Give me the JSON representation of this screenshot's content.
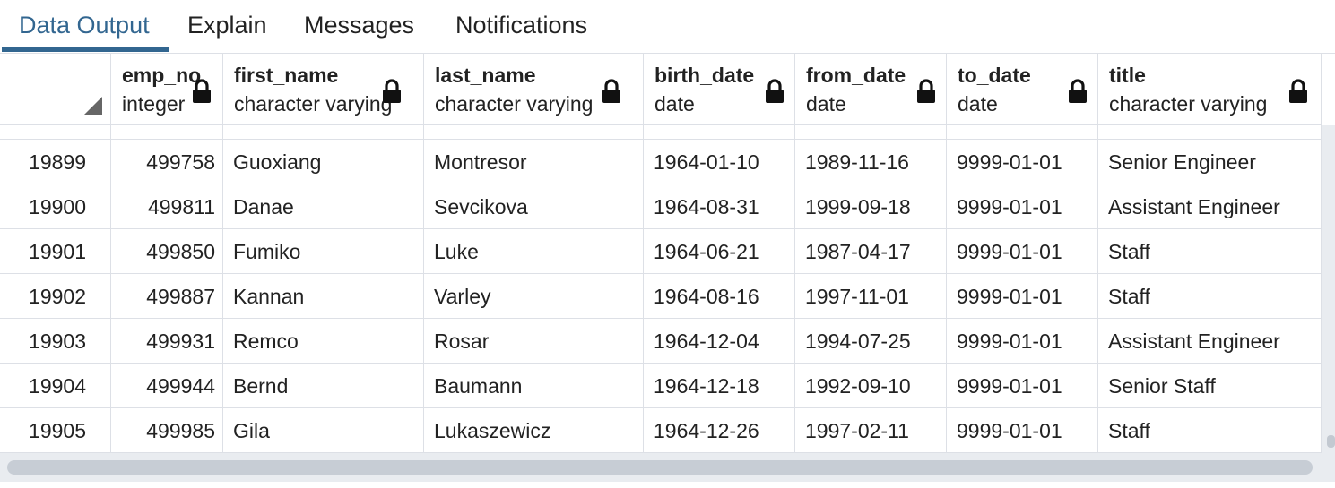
{
  "tabs": [
    {
      "label": "Data Output",
      "active": true
    },
    {
      "label": "Explain",
      "active": false
    },
    {
      "label": "Messages",
      "active": false
    },
    {
      "label": "Notifications",
      "active": false
    }
  ],
  "columns": [
    {
      "name": "emp_no",
      "type": "integer",
      "align": "right"
    },
    {
      "name": "first_name",
      "type": "character varying",
      "align": "left"
    },
    {
      "name": "last_name",
      "type": "character varying",
      "align": "left"
    },
    {
      "name": "birth_date",
      "type": "date",
      "align": "left"
    },
    {
      "name": "from_date",
      "type": "date",
      "align": "left"
    },
    {
      "name": "to_date",
      "type": "date",
      "align": "left"
    },
    {
      "name": "title",
      "type": "character varying",
      "align": "left"
    }
  ],
  "rows": [
    {
      "num": "19899",
      "cells": [
        "499758",
        "Guoxiang",
        "Montresor",
        "1964-01-10",
        "1989-11-16",
        "9999-01-01",
        "Senior Engineer"
      ]
    },
    {
      "num": "19900",
      "cells": [
        "499811",
        "Danae",
        "Sevcikova",
        "1964-08-31",
        "1999-09-18",
        "9999-01-01",
        "Assistant Engineer"
      ]
    },
    {
      "num": "19901",
      "cells": [
        "499850",
        "Fumiko",
        "Luke",
        "1964-06-21",
        "1987-04-17",
        "9999-01-01",
        "Staff"
      ]
    },
    {
      "num": "19902",
      "cells": [
        "499887",
        "Kannan",
        "Varley",
        "1964-08-16",
        "1997-11-01",
        "9999-01-01",
        "Staff"
      ]
    },
    {
      "num": "19903",
      "cells": [
        "499931",
        "Remco",
        "Rosar",
        "1964-12-04",
        "1994-07-25",
        "9999-01-01",
        "Assistant Engineer"
      ]
    },
    {
      "num": "19904",
      "cells": [
        "499944",
        "Bernd",
        "Baumann",
        "1964-12-18",
        "1992-09-10",
        "9999-01-01",
        "Senior Staff"
      ]
    },
    {
      "num": "19905",
      "cells": [
        "499985",
        "Gila",
        "Lukaszewicz",
        "1964-12-26",
        "1997-02-11",
        "9999-01-01",
        "Staff"
      ]
    }
  ],
  "icons": {
    "column_lock": "lock-icon",
    "sort_corner": "corner-triangle-icon"
  },
  "colors": {
    "active_tab": "#326690",
    "grid_line": "#dde0e6",
    "scroll_track": "#e9ecf0"
  },
  "scroll": {
    "horizontal_visible_fraction": 0.98,
    "vertical_position_fraction": 1.0
  }
}
